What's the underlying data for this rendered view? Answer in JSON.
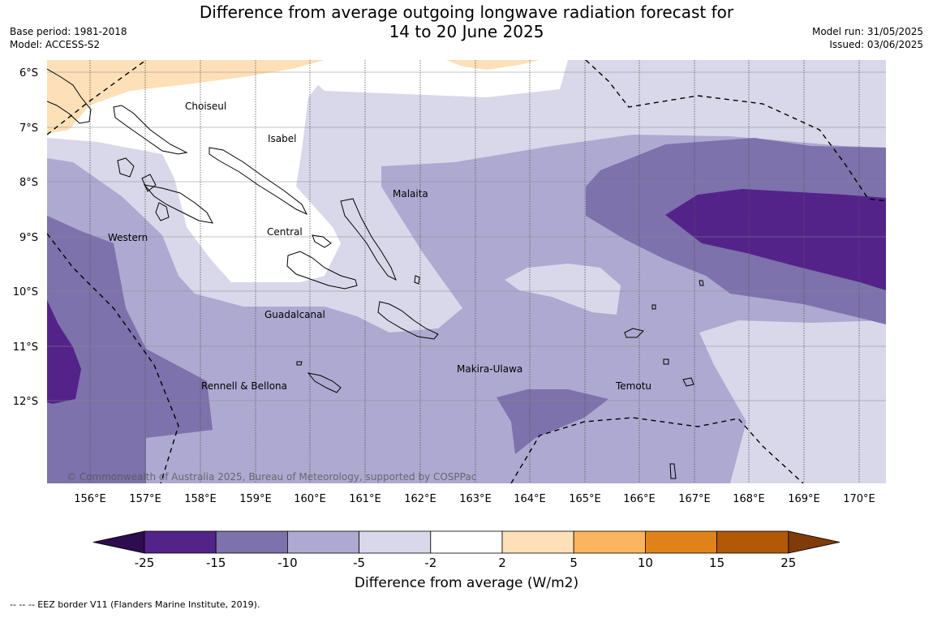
{
  "title_line1": "Difference from average outgoing longwave radiation forecast for",
  "title_line2": "14 to 20 June 2025",
  "base_period": "Base period: 1981-2018",
  "model": "Model: ACCESS-S2",
  "model_run": "Model run: 31/05/2025",
  "issued": "Issued: 03/06/2025",
  "copyright": "© Commonwealth of Australia 2025, Bureau of Meteorology, supported by COSPPac",
  "legend_title": "Difference from average (W/m2)",
  "footer": "--  --  -- EEZ border V11 (Flanders Marine Institute, 2019).",
  "lat_labels": [
    "6°S",
    "7°S",
    "8°S",
    "9°S",
    "10°S",
    "11°S",
    "12°S"
  ],
  "lon_labels": [
    "156°E",
    "157°E",
    "158°E",
    "159°E",
    "160°E",
    "161°E",
    "162°E",
    "163°E",
    "164°E",
    "165°E",
    "166°E",
    "167°E",
    "168°E",
    "169°E",
    "170°E"
  ],
  "regions": [
    "Choiseul",
    "Isabel",
    "Malaita",
    "Western",
    "Central",
    "Guadalcanal",
    "Makira-Ulawa",
    "Rennell & Bellona",
    "Temotu"
  ],
  "colorbar": {
    "ticks": [
      "-25",
      "-15",
      "-10",
      "-5",
      "-2",
      "2",
      "5",
      "10",
      "15",
      "25"
    ],
    "colors": [
      "#2d0c4f",
      "#53238a",
      "#7d72ab",
      "#aea9d1",
      "#d8d8ea",
      "#ffffff",
      "#fde0b8",
      "#fbb55f",
      "#e0821a",
      "#b35806",
      "#7f3b08"
    ]
  }
}
